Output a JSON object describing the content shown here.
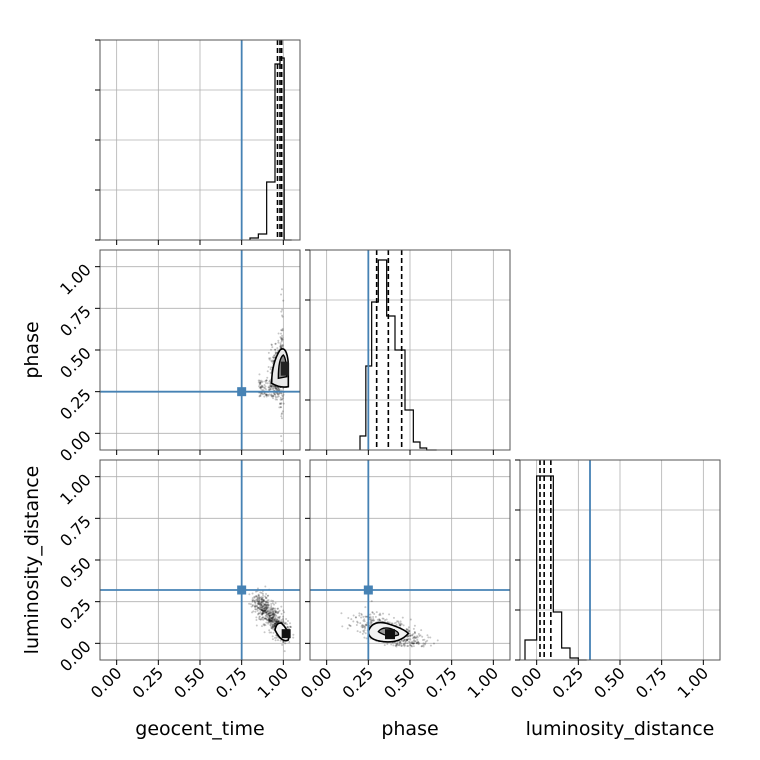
{
  "chart_data": {
    "type": "corner",
    "parameters": [
      "geocent_time",
      "phase",
      "luminosity_distance"
    ],
    "truths": {
      "geocent_time": 0.75,
      "phase": 0.25,
      "luminosity_distance": 0.32
    },
    "truth_color": "#4682b4",
    "range": [
      -0.1,
      1.1
    ],
    "tick_labels": [
      "0.00",
      "0.25",
      "0.50",
      "0.75",
      "1.00"
    ],
    "tick_values": [
      0.0,
      0.25,
      0.5,
      0.75,
      1.0
    ],
    "quantiles": {
      "geocent_time": [
        0.965,
        0.98,
        0.99
      ],
      "phase": [
        0.3,
        0.37,
        0.45
      ],
      "luminosity_distance": [
        0.02,
        0.045,
        0.085
      ]
    },
    "histograms": {
      "geocent_time": {
        "edges": [
          0.8,
          0.85,
          0.9,
          0.95,
          0.98,
          1.005,
          1.05
        ],
        "counts": [
          0.01,
          0.03,
          0.29,
          0.88,
          0.91,
          0.0
        ]
      },
      "phase": {
        "edges": [
          0.2,
          0.235,
          0.27,
          0.31,
          0.36,
          0.41,
          0.47,
          0.52,
          0.56,
          0.6,
          0.66
        ],
        "counts": [
          0.07,
          0.42,
          0.74,
          0.95,
          0.67,
          0.5,
          0.2,
          0.04,
          0.01,
          0.0
        ]
      },
      "luminosity_distance": {
        "edges": [
          -0.07,
          0.0,
          0.1,
          0.15,
          0.2,
          0.25,
          0.3
        ],
        "counts": [
          0.1,
          0.92,
          0.24,
          0.06,
          0.01,
          0.0
        ]
      }
    },
    "posterior_summary": {
      "phase_vs_geocent_time": {
        "center": [
          0.99,
          0.4
        ],
        "spread": [
          0.03,
          0.08
        ]
      },
      "luminosity_distance_vs_geocent_time": {
        "center": [
          0.98,
          0.08
        ],
        "spread": [
          0.05,
          0.06
        ]
      },
      "luminosity_distance_vs_phase": {
        "center": [
          0.38,
          0.07
        ],
        "spread": [
          0.09,
          0.04
        ]
      }
    }
  }
}
